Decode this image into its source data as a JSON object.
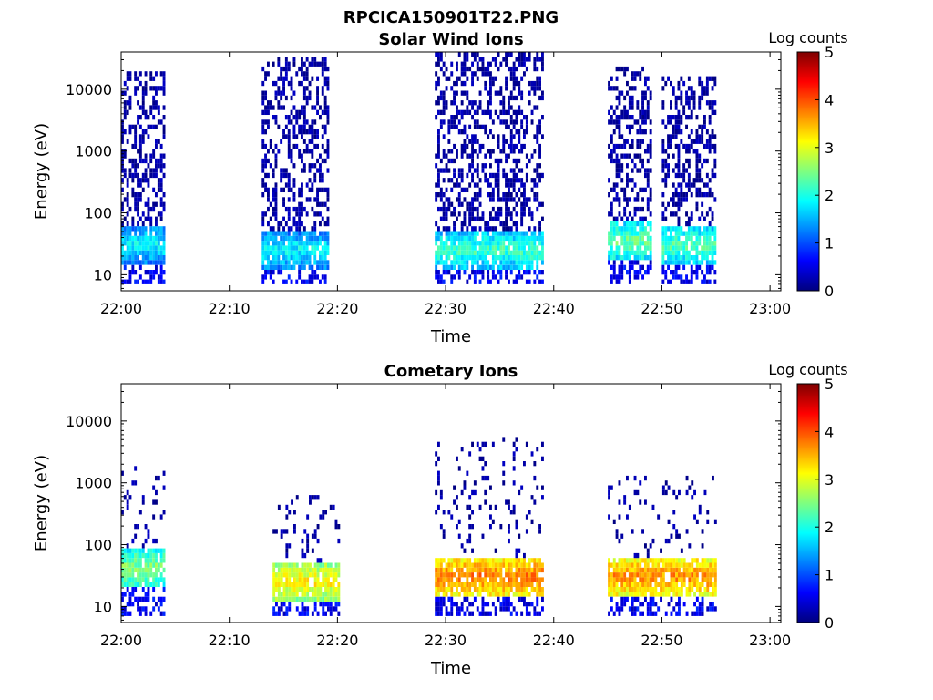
{
  "figure_title": "RPCICA150901T22.PNG",
  "chart_data": [
    {
      "type": "heatmap",
      "title": "Solar Wind Ions",
      "xlabel": "Time",
      "ylabel": "Energy (eV)",
      "x_ticks": [
        "22:00",
        "22:10",
        "22:20",
        "22:30",
        "22:40",
        "22:50",
        "23:00"
      ],
      "xlim": [
        "22:00",
        "23:01"
      ],
      "y_scale": "log",
      "y_ticks": [
        "10",
        "100",
        "1000",
        "10000"
      ],
      "ylim": [
        5.5,
        40000
      ],
      "colorbar": {
        "label": "Log counts",
        "range": [
          0,
          5
        ],
        "ticks": [
          "0",
          "1",
          "2",
          "3",
          "4",
          "5"
        ]
      },
      "bursts": [
        {
          "start": "22:00",
          "end": "22:04",
          "peak_energy": 30,
          "peak_log_counts": 1.9,
          "max_energy": 20000
        },
        {
          "start": "22:13",
          "end": "22:19",
          "peak_energy": 25,
          "peak_log_counts": 1.9,
          "max_energy": 35000
        },
        {
          "start": "22:29",
          "end": "22:39",
          "peak_energy": 25,
          "peak_log_counts": 2.2,
          "max_energy": 40000
        },
        {
          "start": "22:45",
          "end": "22:49",
          "peak_energy": 35,
          "peak_log_counts": 2.4,
          "max_energy": 25000
        },
        {
          "start": "22:50",
          "end": "22:55",
          "peak_energy": 30,
          "peak_log_counts": 2.3,
          "max_energy": 15000
        }
      ]
    },
    {
      "type": "heatmap",
      "title": "Cometary Ions",
      "xlabel": "Time",
      "ylabel": "Energy (eV)",
      "x_ticks": [
        "22:00",
        "22:10",
        "22:20",
        "22:30",
        "22:40",
        "22:50",
        "23:00"
      ],
      "xlim": [
        "22:00",
        "23:01"
      ],
      "y_scale": "log",
      "y_ticks": [
        "10",
        "100",
        "1000",
        "10000"
      ],
      "ylim": [
        5.5,
        40000
      ],
      "colorbar": {
        "label": "Log counts",
        "range": [
          0,
          5
        ],
        "ticks": [
          "0",
          "1",
          "2",
          "3",
          "4",
          "5"
        ]
      },
      "bursts": [
        {
          "start": "22:00",
          "end": "22:04",
          "peak_energy": 40,
          "peak_log_counts": 2.6,
          "max_energy": 1800
        },
        {
          "start": "22:14",
          "end": "22:20",
          "peak_energy": 25,
          "peak_log_counts": 3.2,
          "max_energy": 600
        },
        {
          "start": "22:29",
          "end": "22:39",
          "peak_energy": 30,
          "peak_log_counts": 3.8,
          "max_energy": 5500
        },
        {
          "start": "22:45",
          "end": "22:55",
          "peak_energy": 30,
          "peak_log_counts": 3.7,
          "max_energy": 1200
        }
      ]
    }
  ]
}
